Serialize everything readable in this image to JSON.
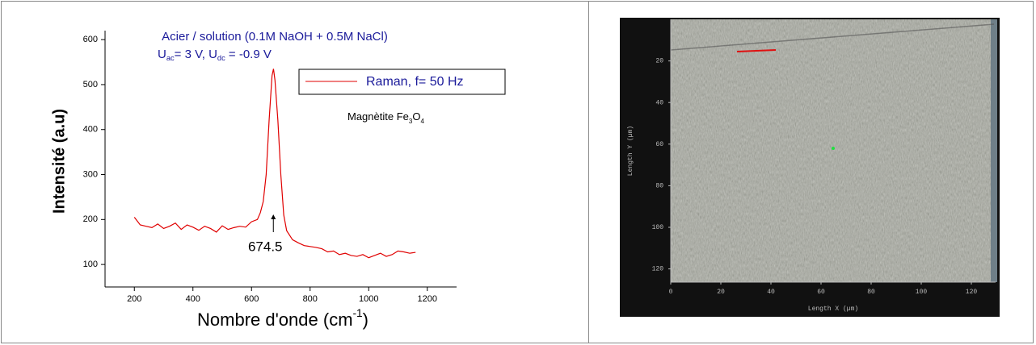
{
  "chart_data": {
    "type": "line",
    "title": "Acier / solution (0.1M NaOH + 0.5M NaCl)",
    "subtitle": [
      "U",
      "ac",
      "= 3 V, U",
      "dc",
      " = -0.9 V"
    ],
    "annotation": [
      "Magnètite Fe",
      "3",
      "O",
      "4"
    ],
    "peak_label": 674.5,
    "x_label": [
      "Nombre d'onde (cm",
      "-1",
      ")"
    ],
    "y_label": "Intensité (a.u)",
    "x": [
      200,
      220,
      240,
      260,
      280,
      300,
      320,
      340,
      360,
      380,
      400,
      420,
      440,
      460,
      480,
      500,
      520,
      540,
      560,
      580,
      600,
      620,
      630,
      640,
      650,
      660,
      670,
      675,
      680,
      690,
      700,
      710,
      720,
      740,
      760,
      780,
      800,
      820,
      840,
      860,
      880,
      900,
      920,
      940,
      960,
      980,
      1000,
      1020,
      1040,
      1060,
      1080,
      1100,
      1120,
      1140,
      1160
    ],
    "series": [
      {
        "name": "Raman, f= 50 Hz",
        "color": "#e00000",
        "values": [
          205,
          188,
          185,
          182,
          190,
          180,
          185,
          192,
          178,
          188,
          183,
          176,
          185,
          180,
          172,
          186,
          178,
          182,
          185,
          183,
          195,
          200,
          215,
          240,
          300,
          420,
          520,
          535,
          510,
          420,
          300,
          210,
          175,
          155,
          148,
          142,
          140,
          138,
          135,
          128,
          130,
          122,
          125,
          120,
          118,
          122,
          115,
          120,
          125,
          118,
          122,
          130,
          128,
          125,
          127
        ]
      }
    ],
    "xlim": [
      100,
      1300
    ],
    "xticks": [
      200,
      400,
      600,
      800,
      1000,
      1200
    ],
    "ylim": [
      50,
      620
    ],
    "yticks": [
      100,
      200,
      300,
      400,
      500,
      600
    ]
  },
  "image_panel": {
    "x_label": "Length X (µm)",
    "y_label": "Length Y (µm)",
    "xticks": [
      0,
      20,
      40,
      60,
      80,
      100,
      120
    ],
    "yticks": [
      20,
      40,
      60,
      80,
      100,
      120
    ]
  }
}
